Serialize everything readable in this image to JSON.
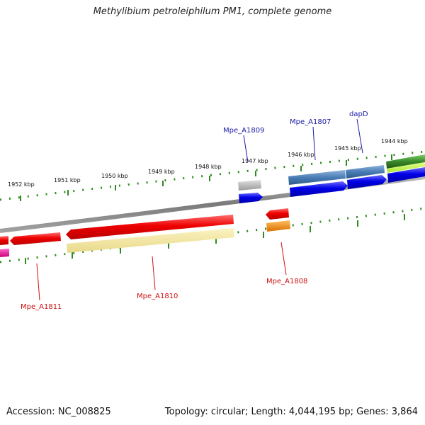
{
  "title": "Methylibium petroleiphilum PM1, complete genome",
  "accession_text": "Accession: NC_008825",
  "summary_text": "Topology: circular; Length: 4,044,195 bp; Genes: 3,864",
  "ruler": {
    "tick_labels": [
      "1952 kbp",
      "1951 kbp",
      "1950 kbp",
      "1949 kbp",
      "1948 kbp",
      "1947 kbp",
      "1946 kbp",
      "1945 kbp",
      "1944 kbp"
    ]
  },
  "gene_labels": {
    "forward": [
      "Mpe_A1809",
      "Mpe_A1807",
      "dapD"
    ],
    "reverse": [
      "Mpe_A1811",
      "Mpe_A1810",
      "Mpe_A1808"
    ]
  },
  "colors": {
    "backbone": "#8a8a8a",
    "tick": "#2e8b1e",
    "cds_forward": "#0000e6",
    "cds_reverse": "#ee0000",
    "feature_blue": "#4a7db5",
    "feature_green": "#3a8a2a",
    "feature_gray": "#b8b8b8",
    "feature_yellow": "#f2e69a",
    "feature_orange": "#f08a00",
    "feature_pink": "#ee1199",
    "label_forward": "#1a1aa6",
    "label_reverse": "#cc1111"
  }
}
